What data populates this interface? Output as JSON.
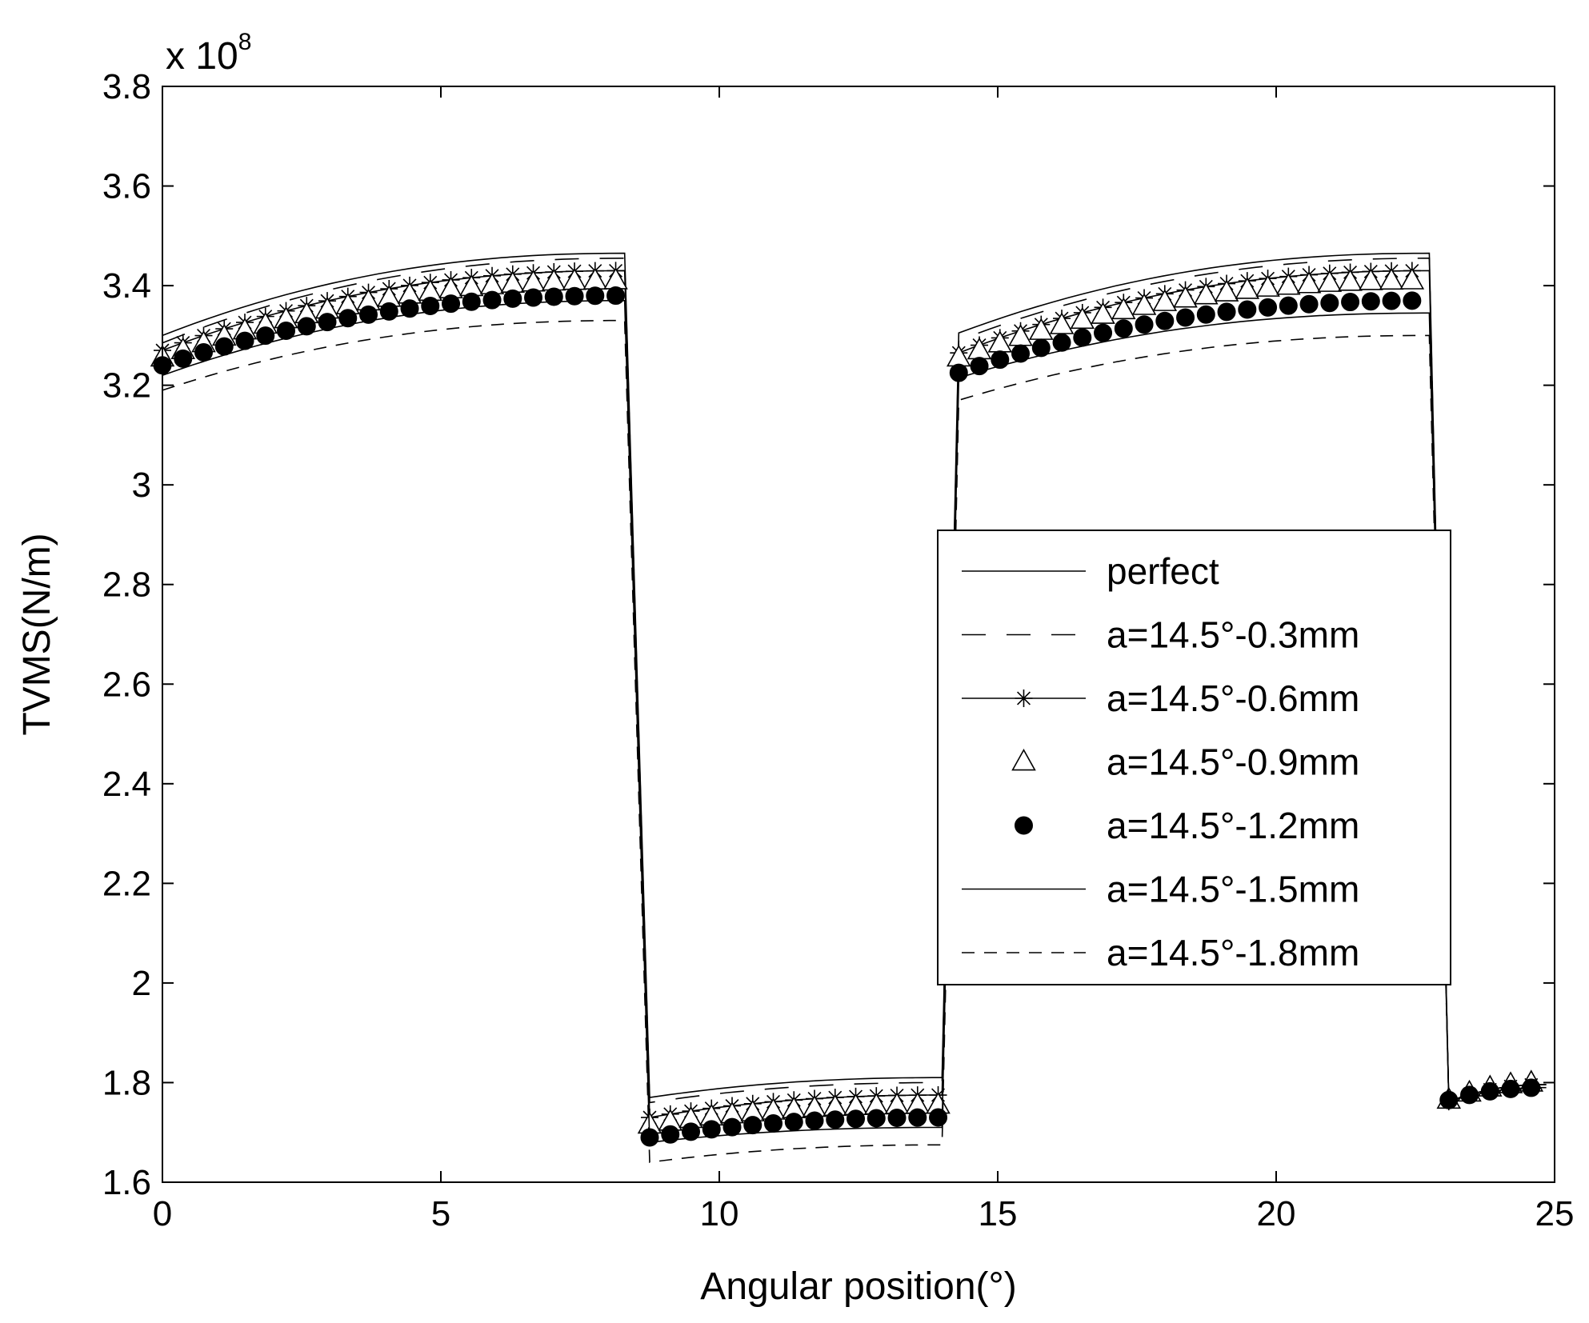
{
  "chart_data": {
    "type": "line",
    "title": "",
    "xlabel": "Angular position(°)",
    "ylabel": "TVMS(N/m)",
    "y_multiplier_base": "x 10",
    "y_multiplier_exp": "8",
    "xlim": [
      0,
      25
    ],
    "ylim": [
      1.6,
      3.8
    ],
    "xticks": [
      0,
      5,
      10,
      15,
      20,
      25
    ],
    "yticks": [
      1.6,
      1.8,
      2.0,
      2.2,
      2.4,
      2.6,
      2.8,
      3.0,
      3.2,
      3.4,
      3.6,
      3.8
    ],
    "xtick_labels": [
      "0",
      "5",
      "10",
      "15",
      "20",
      "25"
    ],
    "ytick_labels": [
      "1.6",
      "1.8",
      "2",
      "2.2",
      "2.4",
      "2.6",
      "2.8",
      "3",
      "3.2",
      "3.4",
      "3.6",
      "3.8"
    ],
    "grid": false,
    "legend_position": "center-right",
    "segments": [
      [
        0.0,
        8.3
      ],
      [
        8.75,
        14.0
      ],
      [
        14.3,
        22.75
      ],
      [
        23.1,
        24.85
      ]
    ],
    "series": [
      {
        "name": "perfect",
        "style": "solid",
        "marker": "none",
        "levels": [
          [
            3.3,
            3.465
          ],
          [
            1.77,
            1.81
          ],
          [
            3.305,
            3.465
          ],
          [
            1.762,
            1.796
          ]
        ]
      },
      {
        "name": "a=14.5°-0.3mm",
        "style": "longdash",
        "marker": "none",
        "levels": [
          [
            3.285,
            3.455
          ],
          [
            1.76,
            1.8
          ],
          [
            3.29,
            3.455
          ],
          [
            1.762,
            1.796
          ]
        ]
      },
      {
        "name": "a=14.5°-0.6mm",
        "style": "solid",
        "marker": "star",
        "levels": [
          [
            3.27,
            3.43
          ],
          [
            1.73,
            1.775
          ],
          [
            3.265,
            3.43
          ],
          [
            1.762,
            1.796
          ]
        ]
      },
      {
        "name": "a=14.5°-0.9mm",
        "style": "none",
        "marker": "triangle",
        "levels": [
          [
            3.255,
            3.41
          ],
          [
            1.715,
            1.755
          ],
          [
            3.255,
            3.41
          ],
          [
            1.765,
            1.8
          ]
        ]
      },
      {
        "name": "a=14.5°-1.2mm",
        "style": "none",
        "marker": "dot",
        "levels": [
          [
            3.24,
            3.38
          ],
          [
            1.69,
            1.73
          ],
          [
            3.225,
            3.37
          ],
          [
            1.765,
            1.79
          ]
        ]
      },
      {
        "name": "a=14.5°-1.5mm",
        "style": "solid",
        "marker": "none",
        "levels": [
          [
            3.22,
            3.37
          ],
          [
            1.68,
            1.71
          ],
          [
            3.215,
            3.345
          ],
          [
            1.762,
            1.79
          ]
        ]
      },
      {
        "name": "a=14.5°-1.8mm",
        "style": "dashed",
        "marker": "none",
        "levels": [
          [
            3.19,
            3.33
          ],
          [
            1.64,
            1.675
          ],
          [
            3.17,
            3.3
          ],
          [
            1.762,
            1.79
          ]
        ]
      }
    ]
  }
}
